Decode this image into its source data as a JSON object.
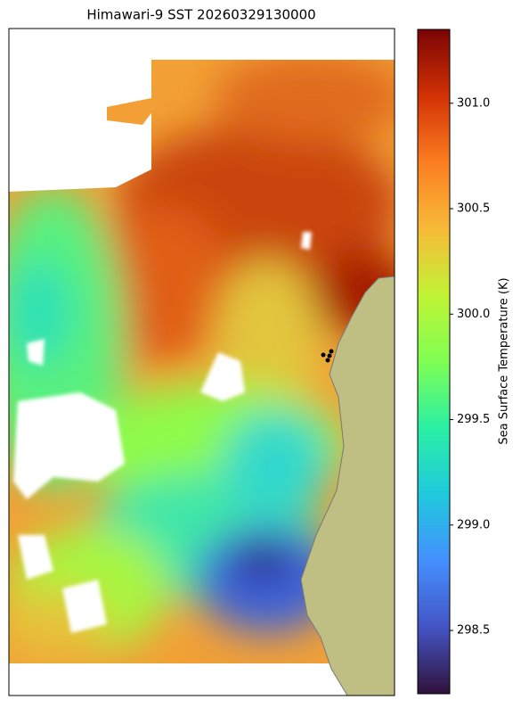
{
  "chart_data": {
    "type": "map",
    "title": "Himawari-9 SST 20260329130000",
    "colorbar_label": "Sea Surface Temperature (K)",
    "colormap": "turbo",
    "ylim": [
      298.2,
      301.35
    ],
    "yticks": [
      {
        "value": 298.5,
        "label": "298.5"
      },
      {
        "value": 299,
        "label": "299.0"
      },
      {
        "value": 299.5,
        "label": "299.5"
      },
      {
        "value": 300,
        "label": "300.0"
      },
      {
        "value": 300.5,
        "label": "300.5"
      },
      {
        "value": 301,
        "label": "301.0"
      }
    ]
  }
}
